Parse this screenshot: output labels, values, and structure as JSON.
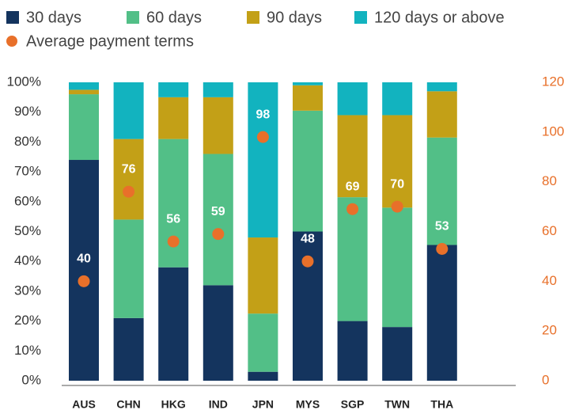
{
  "chart_data": {
    "type": "bar",
    "stacked": true,
    "categories": [
      "AUS",
      "CHN",
      "HKG",
      "IND",
      "JPN",
      "MYS",
      "SGP",
      "TWN",
      "THA"
    ],
    "series": [
      {
        "name": "30 days",
        "color": "#14345e",
        "values": [
          74,
          21,
          38,
          32,
          3,
          50,
          20,
          18,
          45.5
        ]
      },
      {
        "name": "60 days",
        "color": "#52bf87",
        "values": [
          22,
          33,
          43,
          44,
          19.5,
          40.5,
          41.5,
          40,
          36
        ]
      },
      {
        "name": "90 days",
        "color": "#c3a017",
        "values": [
          1.5,
          27,
          14,
          19,
          25.5,
          8.5,
          27.5,
          31,
          15.5
        ]
      },
      {
        "name": "120 days or above",
        "color": "#12b3bf",
        "values": [
          2.5,
          19,
          5,
          5,
          52,
          1,
          11,
          11,
          3
        ]
      },
      {
        "name": "Average payment terms",
        "color": "#e8702a",
        "type": "scatter",
        "axis": "y2",
        "values": [
          40,
          76,
          56,
          59,
          98,
          48,
          69,
          70,
          53
        ]
      }
    ],
    "ylim": [
      0,
      100
    ],
    "yticks": [
      {
        "value": 0,
        "label": "0%"
      },
      {
        "value": 10,
        "label": "10%"
      },
      {
        "value": 20,
        "label": "20%"
      },
      {
        "value": 30,
        "label": "30%"
      },
      {
        "value": 40,
        "label": "40%"
      },
      {
        "value": 50,
        "label": "50%"
      },
      {
        "value": 60,
        "label": "60%"
      },
      {
        "value": 70,
        "label": "70%"
      },
      {
        "value": 80,
        "label": "80%"
      },
      {
        "value": 90,
        "label": "90%"
      },
      {
        "value": 100,
        "label": "100%"
      }
    ],
    "y2lim": [
      0,
      120
    ],
    "y2ticks": [
      0,
      20,
      40,
      60,
      80,
      100,
      120
    ],
    "y2_color": "#e8702a"
  }
}
